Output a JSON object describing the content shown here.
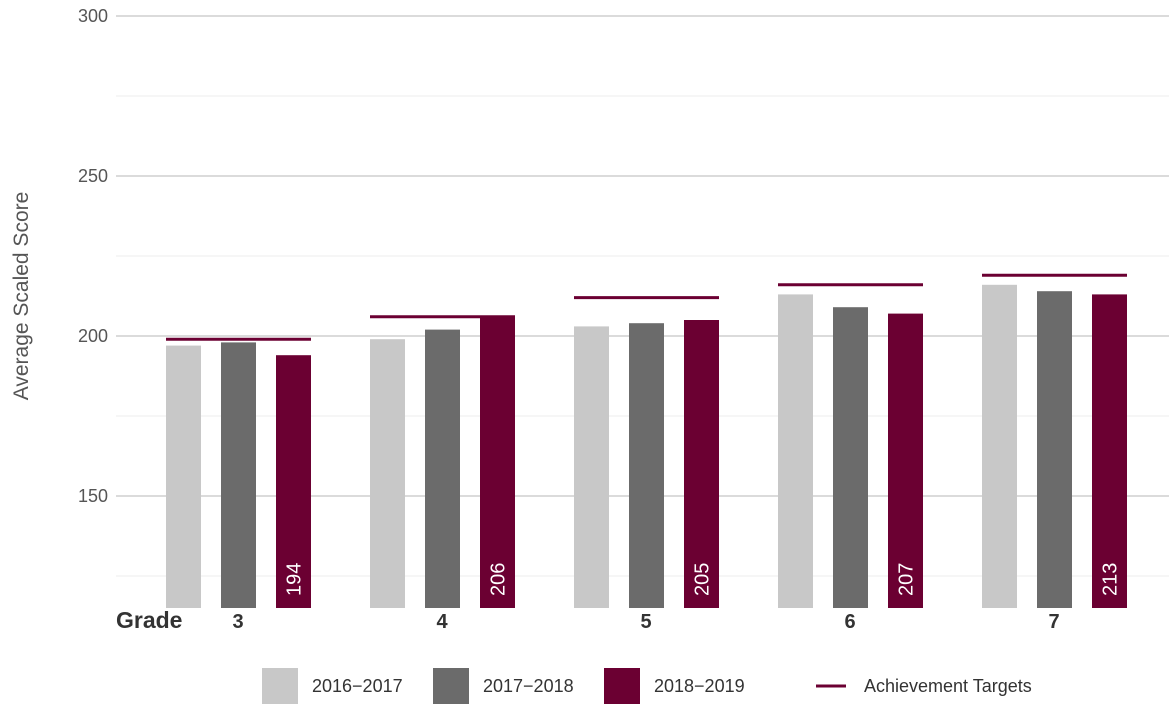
{
  "chart_data": {
    "type": "bar",
    "xlabel_prefix": "Grade",
    "ylabel": "Average Scaled Score",
    "categories": [
      "3",
      "4",
      "5",
      "6",
      "7"
    ],
    "ylim": [
      115,
      300
    ],
    "yticks": [
      150,
      200,
      250,
      300
    ],
    "grid": true,
    "series": [
      {
        "name": "2016−2017",
        "color": "#c8c8c8",
        "values": [
          197,
          199,
          203,
          213,
          216
        ]
      },
      {
        "name": "2017−2018",
        "color": "#6b6b6b",
        "values": [
          198,
          202,
          204,
          209,
          214
        ]
      },
      {
        "name": "2018−2019",
        "color": "#6b0032",
        "values": [
          194,
          206,
          205,
          207,
          213
        ]
      }
    ],
    "data_labels": [
      "194",
      "206",
      "205",
      "207",
      "213"
    ],
    "targets": {
      "name": "Achievement Targets",
      "color": "#6b0032",
      "values": [
        199,
        206,
        212,
        216,
        219
      ]
    },
    "legend_position": "bottom"
  }
}
